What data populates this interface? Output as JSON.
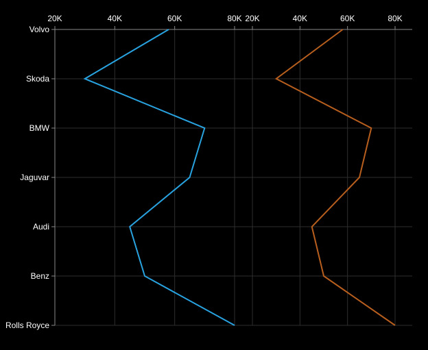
{
  "chart_data": {
    "type": "line",
    "orientation": "vertical-category",
    "categories": [
      "Volvo",
      "Skoda",
      "BMW",
      "Jaguvar",
      "Audi",
      "Benz",
      "Rolls Royce"
    ],
    "grid": true,
    "legend": "none",
    "panels": [
      {
        "xlim": [
          20000,
          80000
        ],
        "xticks": [
          20000,
          40000,
          60000,
          80000
        ],
        "xtick_labels": [
          "20K",
          "40K",
          "60K",
          "80K"
        ],
        "series": [
          {
            "color": "#29a3e0",
            "values": [
              58000,
              30000,
              70000,
              65000,
              45000,
              50000,
              80000
            ]
          }
        ]
      },
      {
        "xlim": [
          20000,
          80000
        ],
        "xticks": [
          20000,
          40000,
          60000,
          80000
        ],
        "xtick_labels": [
          "20K",
          "40K",
          "60K",
          "80K"
        ],
        "series": [
          {
            "color": "#b85f1e",
            "values": [
              58000,
              30000,
              70000,
              65000,
              45000,
              50000,
              80000
            ]
          }
        ]
      }
    ]
  }
}
